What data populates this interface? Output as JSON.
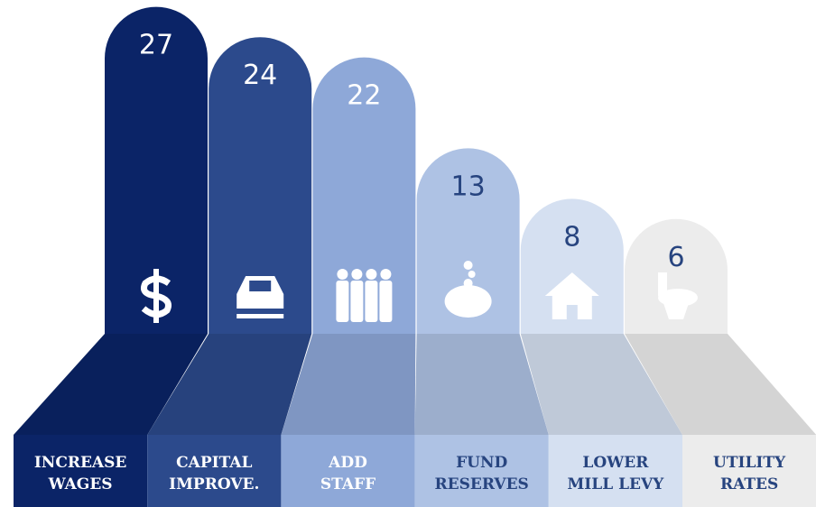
{
  "chart_data": {
    "type": "bar",
    "categories": [
      [
        "INCREASE",
        "WAGES"
      ],
      [
        "CAPITAL",
        "IMPROVE."
      ],
      [
        "ADD",
        "STAFF"
      ],
      [
        "FUND",
        "RESERVES"
      ],
      [
        "LOWER",
        "MILL LEVY"
      ],
      [
        "UTILITY",
        "RATES"
      ]
    ],
    "values": [
      27,
      24,
      22,
      13,
      8,
      6
    ],
    "colors": [
      "#0b2467",
      "#2c4a8c",
      "#8ea8d8",
      "#aec2e4",
      "#d5e0f1",
      "#ececec"
    ]
  }
}
